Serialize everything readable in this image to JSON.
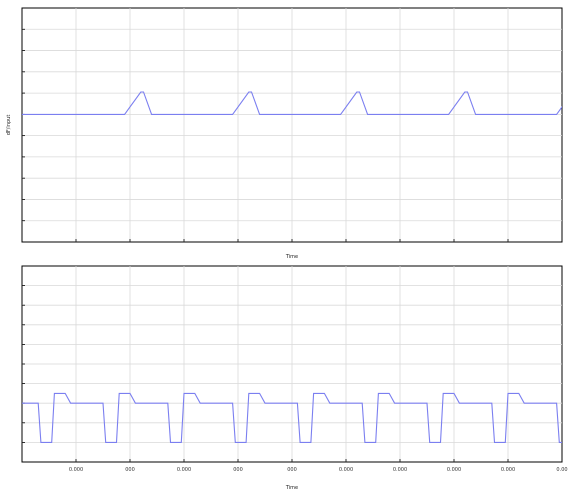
{
  "chart_data": [
    {
      "type": "line",
      "title": "",
      "xlabel": "Time",
      "ylabel": "dF/input",
      "xlim": [
        0,
        10
      ],
      "ylim": [
        -6,
        5
      ],
      "grid": true,
      "x_ticks": [
        1,
        2,
        3,
        4,
        5,
        6,
        7,
        8,
        9,
        10
      ],
      "y_ticks": [
        5,
        4,
        3,
        2,
        1,
        0,
        -1,
        -2,
        -3,
        -4,
        -5,
        -6
      ],
      "x_tick_labels": [
        "",
        "",
        "",
        "",
        "",
        "",
        "",
        "",
        "",
        ""
      ],
      "y_tick_labels": [
        "",
        "",
        "",
        "",
        "",
        "",
        "",
        "",
        "",
        "",
        "",
        ""
      ],
      "corner_label": "",
      "series": [
        {
          "color": "#7b7ff0",
          "x": [
            0,
            1.9,
            2.2,
            2.25,
            2.4,
            3.9,
            4.2,
            4.25,
            4.4,
            5.9,
            6.2,
            6.25,
            6.4,
            7.9,
            8.2,
            8.25,
            8.4,
            9.9,
            10.2,
            10.25,
            10.4,
            11.5
          ],
          "values": [
            0,
            0,
            1.05,
            1.05,
            0,
            0,
            1.05,
            1.05,
            0,
            0,
            1.05,
            1.05,
            0,
            0,
            1.05,
            1.05,
            0,
            0,
            1.05,
            1.05,
            0,
            0
          ]
        }
      ]
    },
    {
      "type": "line",
      "title": "",
      "xlabel": "Time",
      "ylabel": "",
      "xlim": [
        0,
        10
      ],
      "ylim": [
        0,
        10
      ],
      "grid": true,
      "x_ticks": [
        1,
        2,
        3,
        4,
        5,
        6,
        7,
        8,
        9,
        10
      ],
      "y_ticks": [
        10,
        9,
        8,
        7,
        6,
        5,
        4,
        3,
        2,
        1
      ],
      "x_tick_labels": [
        "0.000",
        "000",
        "0.000",
        "000",
        "000",
        "0.000",
        "0.000",
        "0.000",
        "0.000",
        "0.00"
      ],
      "y_tick_labels": [
        "",
        "",
        "",
        "",
        "",
        "",
        "",
        "",
        "",
        ""
      ],
      "series": [
        {
          "color": "#7b7ff0",
          "x": [
            0,
            0.3,
            0.35,
            0.5,
            0.55,
            0.6,
            0.8,
            0.9,
            1.4,
            1.5,
            1.55,
            1.7,
            1.75,
            1.8,
            2.0,
            2.1,
            2.6,
            2.7,
            2.75,
            2.9,
            2.95,
            3.0,
            3.2,
            3.3,
            3.8,
            3.9,
            3.95,
            4.1,
            4.15,
            4.2,
            4.4,
            4.5,
            5.0,
            5.1,
            5.15,
            5.3,
            5.35,
            5.4,
            5.6,
            5.7,
            6.2,
            6.3,
            6.35,
            6.5,
            6.55,
            6.6,
            6.8,
            6.9,
            7.4,
            7.5,
            7.55,
            7.7,
            7.75,
            7.8,
            8.0,
            8.1,
            8.6,
            8.7,
            8.75,
            8.9,
            8.95,
            9.0,
            9.2,
            9.3,
            9.8,
            9.9,
            9.95,
            10.1,
            10.15,
            10.2,
            10.4,
            10.5,
            11.5
          ],
          "values": [
            3.0,
            3.0,
            1.0,
            1.0,
            1.0,
            3.5,
            3.5,
            3.0,
            3.0,
            3.0,
            1.0,
            1.0,
            1.0,
            3.5,
            3.5,
            3.0,
            3.0,
            3.0,
            1.0,
            1.0,
            1.0,
            3.5,
            3.5,
            3.0,
            3.0,
            3.0,
            1.0,
            1.0,
            1.0,
            3.5,
            3.5,
            3.0,
            3.0,
            3.0,
            1.0,
            1.0,
            1.0,
            3.5,
            3.5,
            3.0,
            3.0,
            3.0,
            1.0,
            1.0,
            1.0,
            3.5,
            3.5,
            3.0,
            3.0,
            3.0,
            1.0,
            1.0,
            1.0,
            3.5,
            3.5,
            3.0,
            3.0,
            3.0,
            1.0,
            1.0,
            1.0,
            3.5,
            3.5,
            3.0,
            3.0,
            3.0,
            1.0,
            1.0,
            1.0,
            3.5,
            3.5,
            3.0,
            3.0
          ]
        }
      ]
    }
  ]
}
